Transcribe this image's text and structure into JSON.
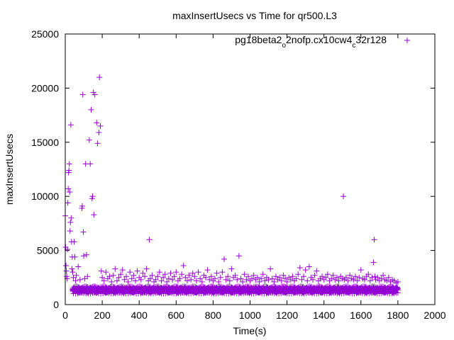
{
  "chart_data": {
    "type": "scatter",
    "title": "maxInsertUsecs vs Time for qr500.L3",
    "xlabel": "Time(s)",
    "ylabel": "maxInsertUsecs",
    "xlim": [
      0,
      2000
    ],
    "ylim": [
      0,
      25000
    ],
    "xticks": [
      0,
      200,
      400,
      600,
      800,
      1000,
      1200,
      1400,
      1600,
      1800,
      2000
    ],
    "yticks": [
      0,
      5000,
      10000,
      15000,
      20000,
      25000
    ],
    "grid": false,
    "legend_position": "top-right",
    "marker": "+",
    "color": "#9400d3",
    "series": [
      {
        "name": "pg18beta2_o2nofp.cx10cw4_c32r128",
        "name_parts": [
          "pg18beta2",
          "o",
          "2nofp.cx10cw4",
          "c",
          "32r128"
        ],
        "points": [
          [
            0,
            8200
          ],
          [
            2,
            5300
          ],
          [
            4,
            3600
          ],
          [
            6,
            3100
          ],
          [
            8,
            2600
          ],
          [
            10,
            2400
          ],
          [
            12,
            5100
          ],
          [
            14,
            9400
          ],
          [
            16,
            10700
          ],
          [
            18,
            12200
          ],
          [
            20,
            12400
          ],
          [
            22,
            13000
          ],
          [
            24,
            10400
          ],
          [
            26,
            6800
          ],
          [
            28,
            7600
          ],
          [
            30,
            16600
          ],
          [
            32,
            8000
          ],
          [
            34,
            5800
          ],
          [
            36,
            3300
          ],
          [
            38,
            4400
          ],
          [
            40,
            3000
          ],
          [
            44,
            2500
          ],
          [
            48,
            5800
          ],
          [
            52,
            4400
          ],
          [
            56,
            2200
          ],
          [
            60,
            2700
          ],
          [
            70,
            3500
          ],
          [
            80,
            2300
          ],
          [
            90,
            8900
          ],
          [
            92,
            9100
          ],
          [
            95,
            19400
          ],
          [
            98,
            6700
          ],
          [
            100,
            4500
          ],
          [
            105,
            2400
          ],
          [
            110,
            13000
          ],
          [
            115,
            4600
          ],
          [
            120,
            2600
          ],
          [
            130,
            15200
          ],
          [
            135,
            13000
          ],
          [
            140,
            18000
          ],
          [
            145,
            9800
          ],
          [
            148,
            10000
          ],
          [
            152,
            19600
          ],
          [
            155,
            8300
          ],
          [
            160,
            19400
          ],
          [
            170,
            16800
          ],
          [
            175,
            14900
          ],
          [
            182,
            15900
          ],
          [
            185,
            21000
          ],
          [
            190,
            16500
          ],
          [
            195,
            3100
          ],
          [
            200,
            2500
          ],
          [
            210,
            2200
          ],
          [
            220,
            3000
          ],
          [
            230,
            2400
          ],
          [
            240,
            2600
          ],
          [
            250,
            2100
          ],
          [
            260,
            2700
          ],
          [
            270,
            3300
          ],
          [
            280,
            2200
          ],
          [
            290,
            2500
          ],
          [
            300,
            2800
          ],
          [
            310,
            3200
          ],
          [
            320,
            2300
          ],
          [
            330,
            2600
          ],
          [
            340,
            2100
          ],
          [
            350,
            3000
          ],
          [
            360,
            2400
          ],
          [
            370,
            2700
          ],
          [
            380,
            2200
          ],
          [
            390,
            3100
          ],
          [
            400,
            2500
          ],
          [
            410,
            2300
          ],
          [
            420,
            2900
          ],
          [
            430,
            2600
          ],
          [
            440,
            3300
          ],
          [
            450,
            2200
          ],
          [
            455,
            6000
          ],
          [
            460,
            2400
          ],
          [
            470,
            2700
          ],
          [
            480,
            2100
          ],
          [
            490,
            2300
          ],
          [
            500,
            2600
          ],
          [
            510,
            3000
          ],
          [
            520,
            2200
          ],
          [
            530,
            2500
          ],
          [
            540,
            2800
          ],
          [
            550,
            2100
          ],
          [
            560,
            2400
          ],
          [
            570,
            2900
          ],
          [
            580,
            2300
          ],
          [
            590,
            2600
          ],
          [
            600,
            3000
          ],
          [
            610,
            2200
          ],
          [
            620,
            2400
          ],
          [
            630,
            2800
          ],
          [
            640,
            3600
          ],
          [
            650,
            2500
          ],
          [
            660,
            2200
          ],
          [
            670,
            2700
          ],
          [
            680,
            2300
          ],
          [
            690,
            2900
          ],
          [
            700,
            2600
          ],
          [
            710,
            2200
          ],
          [
            720,
            3000
          ],
          [
            730,
            2400
          ],
          [
            740,
            2100
          ],
          [
            750,
            2700
          ],
          [
            760,
            2500
          ],
          [
            770,
            3200
          ],
          [
            780,
            2300
          ],
          [
            790,
            2600
          ],
          [
            800,
            2200
          ],
          [
            810,
            2400
          ],
          [
            820,
            2900
          ],
          [
            830,
            2100
          ],
          [
            840,
            2500
          ],
          [
            850,
            3000
          ],
          [
            860,
            4200
          ],
          [
            870,
            2300
          ],
          [
            880,
            2600
          ],
          [
            890,
            2200
          ],
          [
            900,
            3300
          ],
          [
            910,
            2500
          ],
          [
            920,
            2700
          ],
          [
            930,
            2300
          ],
          [
            940,
            4500
          ],
          [
            950,
            2400
          ],
          [
            960,
            2100
          ],
          [
            970,
            2800
          ],
          [
            980,
            2300
          ],
          [
            990,
            2600
          ],
          [
            1000,
            2200
          ],
          [
            1010,
            2400
          ],
          [
            1020,
            2700
          ],
          [
            1030,
            2300
          ],
          [
            1040,
            2500
          ],
          [
            1050,
            2100
          ],
          [
            1060,
            2400
          ],
          [
            1070,
            2800
          ],
          [
            1080,
            2200
          ],
          [
            1090,
            2500
          ],
          [
            1100,
            2300
          ],
          [
            1110,
            3300
          ],
          [
            1120,
            2400
          ],
          [
            1130,
            2100
          ],
          [
            1140,
            2600
          ],
          [
            1150,
            2300
          ],
          [
            1160,
            2500
          ],
          [
            1170,
            2200
          ],
          [
            1180,
            2700
          ],
          [
            1190,
            2400
          ],
          [
            1200,
            2100
          ],
          [
            1210,
            2500
          ],
          [
            1220,
            2300
          ],
          [
            1230,
            2600
          ],
          [
            1240,
            2200
          ],
          [
            1250,
            2400
          ],
          [
            1260,
            2800
          ],
          [
            1270,
            3400
          ],
          [
            1280,
            2300
          ],
          [
            1290,
            2600
          ],
          [
            1300,
            3200
          ],
          [
            1310,
            2200
          ],
          [
            1320,
            3500
          ],
          [
            1330,
            2500
          ],
          [
            1340,
            2300
          ],
          [
            1350,
            2700
          ],
          [
            1360,
            3100
          ],
          [
            1370,
            2200
          ],
          [
            1380,
            2400
          ],
          [
            1390,
            2600
          ],
          [
            1400,
            2300
          ],
          [
            1410,
            2500
          ],
          [
            1420,
            2800
          ],
          [
            1430,
            2200
          ],
          [
            1440,
            2400
          ],
          [
            1450,
            2700
          ],
          [
            1460,
            2300
          ],
          [
            1470,
            2500
          ],
          [
            1480,
            2200
          ],
          [
            1490,
            2600
          ],
          [
            1500,
            2400
          ],
          [
            1505,
            10000
          ],
          [
            1510,
            2300
          ],
          [
            1520,
            2500
          ],
          [
            1530,
            2200
          ],
          [
            1540,
            2700
          ],
          [
            1550,
            2400
          ],
          [
            1560,
            2300
          ],
          [
            1570,
            2600
          ],
          [
            1580,
            2200
          ],
          [
            1590,
            2500
          ],
          [
            1600,
            3200
          ],
          [
            1610,
            2400
          ],
          [
            1620,
            2300
          ],
          [
            1630,
            2600
          ],
          [
            1640,
            2800
          ],
          [
            1650,
            2200
          ],
          [
            1660,
            2500
          ],
          [
            1668,
            3900
          ],
          [
            1672,
            6000
          ],
          [
            1676,
            2600
          ],
          [
            1680,
            2300
          ],
          [
            1690,
            2500
          ],
          [
            1700,
            2200
          ],
          [
            1710,
            2400
          ],
          [
            1720,
            2700
          ],
          [
            1730,
            2300
          ],
          [
            1740,
            2200
          ],
          [
            1750,
            2500
          ],
          [
            1760,
            2100
          ],
          [
            1770,
            2300
          ],
          [
            1780,
            2200
          ],
          [
            1790,
            2000
          ],
          [
            1800,
            2100
          ]
        ],
        "baseline_band": {
          "x_start": 40,
          "x_end": 1800,
          "x_step": 4,
          "levels": [
            1500,
            1400,
            1300,
            1200
          ],
          "ripple": 180
        }
      }
    ]
  }
}
